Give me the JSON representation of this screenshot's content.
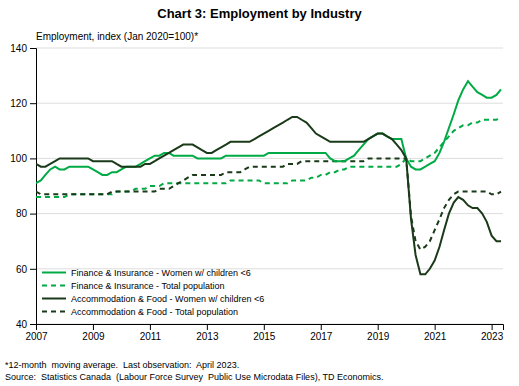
{
  "chart_data": {
    "type": "line",
    "title": "Chart 3: Employment by Industry",
    "y_label": "Employment, index (Jan 2020=100)*",
    "annotations": [
      "*12-month  moving average.  Last observation:  April 2023.",
      "Source:  Statistics Canada  (Labour Force Survey  Public Use Microdata Files), TD Economics."
    ],
    "xlim": [
      2007.0,
      2023.4
    ],
    "xticks": [
      2007,
      2009,
      2011,
      2013,
      2015,
      2017,
      2019,
      2021,
      2023
    ],
    "ylim": [
      40,
      140
    ],
    "yticks": [
      40,
      60,
      80,
      100,
      120,
      140
    ],
    "grid": true,
    "legend": "lower left",
    "x": [
      2007.0,
      2007.17,
      2007.33,
      2007.5,
      2007.67,
      2007.83,
      2008.0,
      2008.17,
      2008.33,
      2008.5,
      2008.67,
      2008.83,
      2009.0,
      2009.17,
      2009.33,
      2009.5,
      2009.67,
      2009.83,
      2010.0,
      2010.17,
      2010.33,
      2010.5,
      2010.67,
      2010.83,
      2011.0,
      2011.17,
      2011.33,
      2011.5,
      2011.67,
      2011.83,
      2012.0,
      2012.17,
      2012.33,
      2012.5,
      2012.67,
      2012.83,
      2013.0,
      2013.17,
      2013.33,
      2013.5,
      2013.67,
      2013.83,
      2014.0,
      2014.17,
      2014.33,
      2014.5,
      2014.67,
      2014.83,
      2015.0,
      2015.17,
      2015.33,
      2015.5,
      2015.67,
      2015.83,
      2016.0,
      2016.17,
      2016.33,
      2016.5,
      2016.67,
      2016.83,
      2017.0,
      2017.17,
      2017.33,
      2017.5,
      2017.67,
      2017.83,
      2018.0,
      2018.17,
      2018.33,
      2018.5,
      2018.67,
      2018.83,
      2019.0,
      2019.17,
      2019.33,
      2019.5,
      2019.67,
      2019.83,
      2020.0,
      2020.17,
      2020.33,
      2020.5,
      2020.67,
      2020.83,
      2021.0,
      2021.17,
      2021.33,
      2021.5,
      2021.67,
      2021.83,
      2022.0,
      2022.17,
      2022.33,
      2022.5,
      2022.67,
      2022.83,
      2023.0,
      2023.17,
      2023.33
    ],
    "series": [
      {
        "name": "Finance & Insurance - Women w/ children <6",
        "color": "#00aa44",
        "line_style": "solid",
        "values": [
          91,
          92,
          94,
          96,
          97,
          96,
          96,
          97,
          97,
          97,
          97,
          97,
          96,
          95,
          94,
          94,
          95,
          95,
          96,
          97,
          97,
          97,
          98,
          99,
          100,
          101,
          101,
          102,
          102,
          101,
          101,
          101,
          101,
          101,
          100,
          100,
          100,
          100,
          100,
          100,
          101,
          101,
          101,
          101,
          101,
          101,
          101,
          101,
          101,
          102,
          102,
          102,
          102,
          102,
          102,
          102,
          102,
          102,
          102,
          102,
          102,
          102,
          100,
          99,
          99,
          99,
          100,
          101,
          103,
          105,
          107,
          108,
          109,
          109,
          108,
          107,
          107,
          107,
          100,
          97,
          96,
          96,
          97,
          98,
          99,
          102,
          106,
          111,
          116,
          121,
          125,
          128,
          126,
          124,
          123,
          122,
          122,
          123,
          125
        ]
      },
      {
        "name": "Finance & Insurance - Total population",
        "color": "#00aa44",
        "line_style": "dashed",
        "values": [
          86,
          86,
          86,
          86,
          86,
          86,
          86,
          87,
          87,
          87,
          87,
          87,
          87,
          87,
          87,
          87,
          87,
          88,
          88,
          88,
          88,
          89,
          89,
          89,
          90,
          90,
          90,
          91,
          91,
          91,
          91,
          91,
          91,
          91,
          91,
          91,
          91,
          91,
          91,
          91,
          91,
          92,
          92,
          92,
          92,
          92,
          92,
          92,
          91,
          91,
          91,
          91,
          91,
          91,
          92,
          92,
          92,
          92,
          93,
          93,
          94,
          94,
          95,
          95,
          96,
          96,
          97,
          97,
          97,
          97,
          97,
          97,
          97,
          97,
          97,
          97,
          97,
          98,
          100,
          99,
          99,
          99,
          100,
          101,
          102,
          104,
          106,
          108,
          110,
          111,
          112,
          112,
          113,
          113,
          114,
          114,
          114,
          114,
          115
        ]
      },
      {
        "name": "Accommodation & Food - Women w/ children <6",
        "color": "#1a3a1a",
        "line_style": "solid",
        "values": [
          98,
          97,
          97,
          98,
          99,
          100,
          100,
          100,
          100,
          100,
          100,
          100,
          99,
          99,
          99,
          99,
          99,
          98,
          97,
          97,
          97,
          97,
          97,
          98,
          98,
          99,
          100,
          101,
          102,
          103,
          104,
          105,
          105,
          105,
          104,
          103,
          102,
          102,
          103,
          104,
          105,
          106,
          106,
          106,
          106,
          106,
          107,
          108,
          109,
          110,
          111,
          112,
          113,
          114,
          115,
          115,
          114,
          113,
          111,
          109,
          108,
          107,
          106,
          106,
          106,
          106,
          106,
          106,
          106,
          106,
          107,
          108,
          109,
          109,
          108,
          107,
          105,
          103,
          100,
          78,
          65,
          58,
          58,
          60,
          63,
          68,
          74,
          80,
          84,
          86,
          85,
          83,
          82,
          82,
          80,
          77,
          72,
          70,
          70
        ]
      },
      {
        "name": "Accommodation & Food - Total population",
        "color": "#1a3a1a",
        "line_style": "dashed",
        "values": [
          88,
          87,
          87,
          87,
          87,
          87,
          87,
          87,
          87,
          87,
          87,
          87,
          87,
          87,
          87,
          87,
          88,
          88,
          88,
          88,
          88,
          88,
          88,
          88,
          88,
          88,
          89,
          89,
          89,
          90,
          91,
          92,
          93,
          94,
          94,
          94,
          94,
          94,
          94,
          94,
          95,
          95,
          95,
          95,
          96,
          97,
          97,
          97,
          97,
          97,
          97,
          97,
          97,
          98,
          98,
          98,
          99,
          99,
          99,
          99,
          99,
          99,
          99,
          99,
          99,
          99,
          99,
          99,
          99,
          99,
          100,
          100,
          100,
          100,
          100,
          100,
          100,
          100,
          100,
          79,
          70,
          67,
          68,
          70,
          74,
          78,
          82,
          85,
          87,
          88,
          88,
          88,
          88,
          88,
          88,
          88,
          87,
          87,
          88
        ]
      }
    ]
  }
}
